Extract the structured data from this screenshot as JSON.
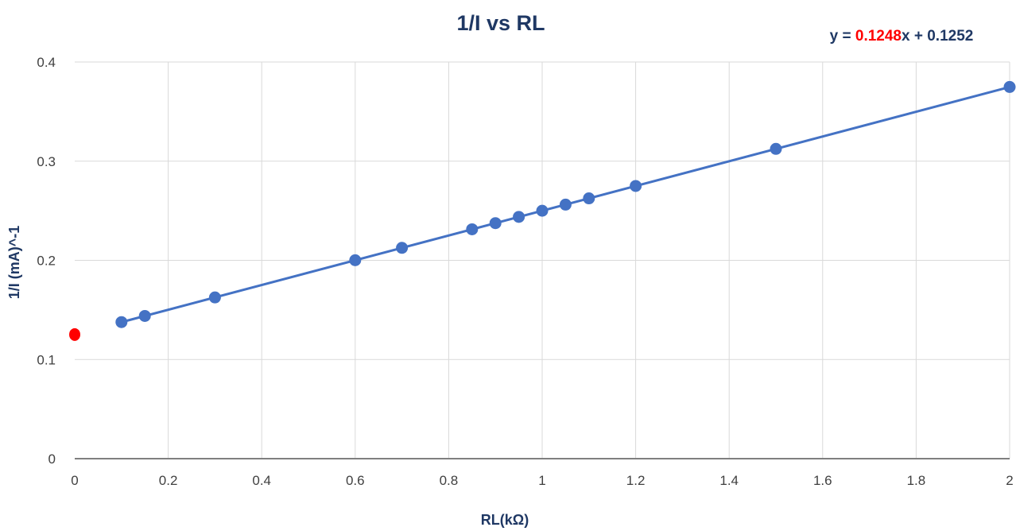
{
  "chart_data": {
    "type": "scatter",
    "title": "1/I vs RL",
    "xlabel": "RL(kΩ)",
    "ylabel": "1/I (mA)^-1",
    "xlim": [
      0,
      2
    ],
    "ylim": [
      0,
      0.4
    ],
    "x_ticks": [
      "0",
      "0.2",
      "0.4",
      "0.6",
      "0.8",
      "1",
      "1.2",
      "1.4",
      "1.6",
      "1.8",
      "2"
    ],
    "y_ticks": [
      "0",
      "0.1",
      "0.2",
      "0.3",
      "0.4"
    ],
    "grid": true,
    "series": [
      {
        "color": "#4472c4",
        "points": [
          {
            "x": 0.1,
            "y": 0.1377
          },
          {
            "x": 0.15,
            "y": 0.1439
          },
          {
            "x": 0.3,
            "y": 0.1626
          },
          {
            "x": 0.6,
            "y": 0.2001
          },
          {
            "x": 0.7,
            "y": 0.2126
          },
          {
            "x": 0.85,
            "y": 0.2313
          },
          {
            "x": 0.9,
            "y": 0.2375
          },
          {
            "x": 0.95,
            "y": 0.2438
          },
          {
            "x": 1.0,
            "y": 0.25
          },
          {
            "x": 1.05,
            "y": 0.2562
          },
          {
            "x": 1.1,
            "y": 0.2625
          },
          {
            "x": 1.2,
            "y": 0.275
          },
          {
            "x": 1.5,
            "y": 0.3124
          },
          {
            "x": 2.0,
            "y": 0.3748
          }
        ]
      }
    ],
    "trendline": {
      "color": "#4472c4",
      "slope": 0.1248,
      "intercept": 0.1252,
      "x_range": [
        0.1,
        2.0
      ]
    },
    "intercept_marker": {
      "x": 0,
      "y": 0.1252,
      "color": "#ff0000"
    },
    "equation": {
      "prefix": "y = ",
      "slope": "0.1248",
      "suffix": "x + 0.1252",
      "slope_color": "#ff0000"
    }
  }
}
